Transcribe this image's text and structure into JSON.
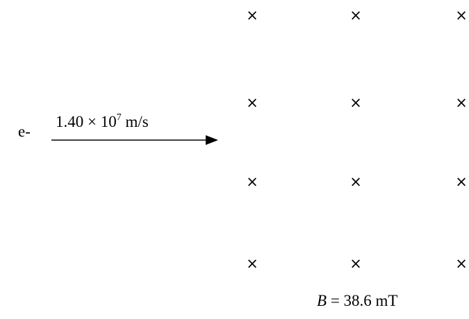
{
  "particle": {
    "label": "e-"
  },
  "velocity": {
    "mantissa": "1.40",
    "times": "×",
    "base": "10",
    "exponent": "7",
    "unit": "m/s"
  },
  "field": {
    "symbol": "B",
    "equals": "=",
    "value": "38.6",
    "unit": "mT",
    "direction_glyph": "×",
    "rows": 4,
    "cols": 3
  }
}
